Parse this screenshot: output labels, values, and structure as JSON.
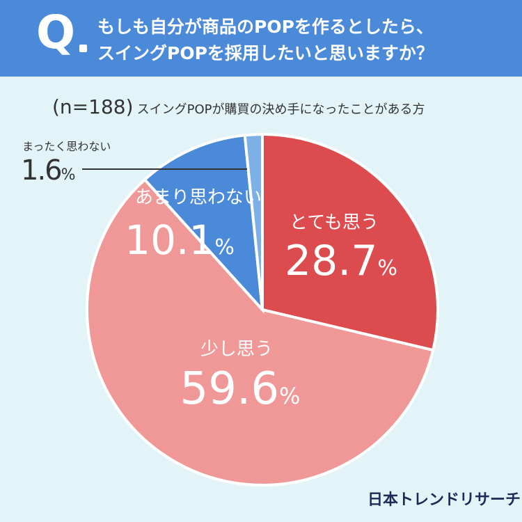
{
  "header": {
    "q_mark": "Q",
    "line1": "もしも自分が商品のPOPを作るとしたら、",
    "line2": "スイングPOPを採用したいと思いますか？"
  },
  "subtitle": {
    "n": "(n=188)",
    "text": "スイングPOPが購買の決め手になったことがある方"
  },
  "chart_data": {
    "type": "pie",
    "title": "もしも自分が商品のPOPを作るとしたら、スイングPOPを採用したいと思いますか？",
    "subtitle": "(n=188) スイングPOPが購買の決め手になったことがある方",
    "unit": "%",
    "slices": [
      {
        "label": "とても思う",
        "value": 28.7,
        "value_text": "28.7",
        "color": "#dc4b4d"
      },
      {
        "label": "少し思う",
        "value": 59.6,
        "value_text": "59.6",
        "color": "#f09898"
      },
      {
        "label": "あまり思わない",
        "value": 10.1,
        "value_text": "10.1",
        "color": "#4a8ad8"
      },
      {
        "label": "まったく思わない",
        "value": 1.6,
        "value_text": "1.6",
        "color": "#7eb0e8"
      }
    ],
    "percent_symbol": "%"
  },
  "logo": "日本トレンドリサーチ",
  "colors": {
    "header_bg": "#4a8ad8",
    "page_bg": "#e2f4f8",
    "label_text": "#ffffff",
    "dark_text": "#333333"
  }
}
